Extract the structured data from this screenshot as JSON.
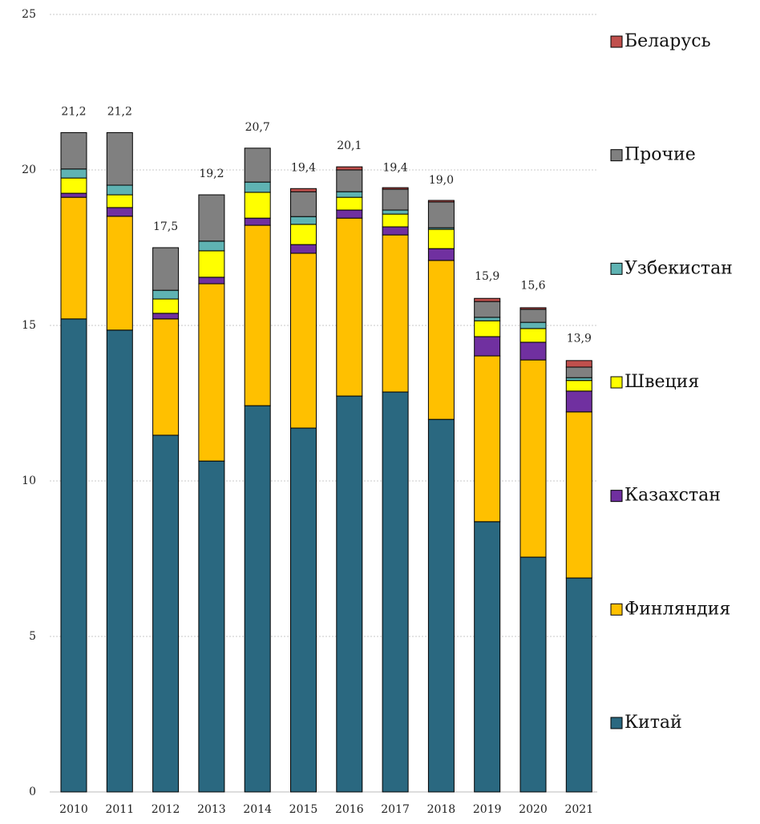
{
  "chart_data": {
    "type": "stacked_bar",
    "categories": [
      "2010",
      "2011",
      "2012",
      "2013",
      "2014",
      "2015",
      "2016",
      "2017",
      "2018",
      "2019",
      "2020",
      "2021"
    ],
    "series": [
      {
        "name": "Китай",
        "color": "#2a6880",
        "values": [
          15.21,
          14.85,
          11.47,
          10.64,
          12.42,
          11.7,
          12.73,
          12.86,
          11.98,
          8.69,
          7.55,
          6.88
        ]
      },
      {
        "name": "Финляндия",
        "color": "#ffc000",
        "values": [
          3.91,
          3.66,
          3.74,
          5.7,
          5.8,
          5.62,
          5.72,
          5.05,
          5.11,
          5.33,
          6.34,
          5.34
        ]
      },
      {
        "name": "Казахстан",
        "color": "#7030a0",
        "values": [
          0.13,
          0.28,
          0.18,
          0.21,
          0.23,
          0.28,
          0.26,
          0.26,
          0.38,
          0.62,
          0.57,
          0.67
        ]
      },
      {
        "name": "Швеция",
        "color": "#ffff00",
        "values": [
          0.49,
          0.41,
          0.46,
          0.85,
          0.83,
          0.65,
          0.41,
          0.41,
          0.62,
          0.51,
          0.44,
          0.34
        ]
      },
      {
        "name": "Узбекистан",
        "color": "#5fb3b3",
        "values": [
          0.29,
          0.31,
          0.28,
          0.31,
          0.33,
          0.25,
          0.18,
          0.13,
          0.05,
          0.11,
          0.2,
          0.09
        ]
      },
      {
        "name": "Прочие",
        "color": "#808080",
        "values": [
          1.17,
          1.69,
          1.37,
          1.49,
          1.09,
          0.8,
          0.7,
          0.67,
          0.83,
          0.51,
          0.42,
          0.34
        ]
      },
      {
        "name": "Беларусь",
        "color": "#c0504d",
        "values": [
          0,
          0,
          0,
          0,
          0,
          0.1,
          0.1,
          0.05,
          0.05,
          0.1,
          0.05,
          0.21
        ]
      }
    ],
    "totals": [
      21.2,
      21.2,
      17.5,
      19.2,
      20.7,
      19.4,
      20.1,
      19.4,
      19.0,
      15.9,
      15.6,
      13.9
    ],
    "total_labels": [
      "21,2",
      "21,2",
      "17,5",
      "19,2",
      "20,7",
      "19,4",
      "20,1",
      "19,4",
      "19,0",
      "15,9",
      "15,6",
      "13,9"
    ],
    "ylim": [
      0,
      25
    ],
    "yticks": [
      0,
      5,
      10,
      15,
      20,
      25
    ],
    "grid": true,
    "legend": "right"
  }
}
